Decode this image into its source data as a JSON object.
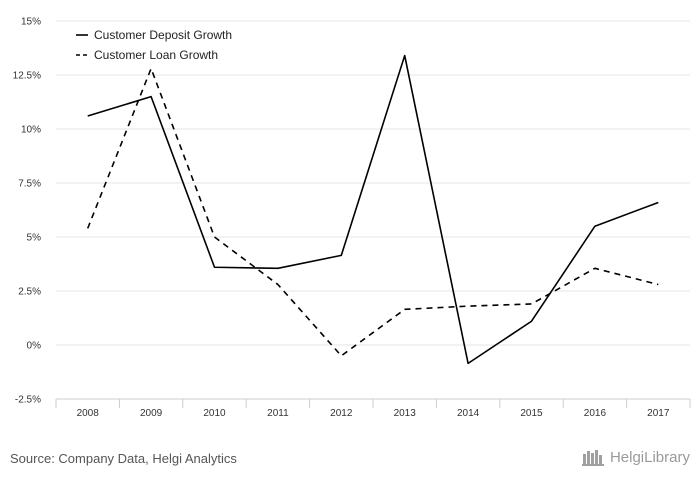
{
  "chart_data": {
    "type": "line",
    "title": "",
    "xlabel": "",
    "ylabel": "",
    "categories": [
      "2008",
      "2009",
      "2010",
      "2011",
      "2012",
      "2013",
      "2014",
      "2015",
      "2016",
      "2017"
    ],
    "ylim": [
      -2.5,
      15
    ],
    "yticks": [
      -2.5,
      0,
      2.5,
      5,
      7.5,
      10,
      12.5,
      15
    ],
    "ytick_labels": [
      "-2.5%",
      "0%",
      "2.5%",
      "5%",
      "7.5%",
      "10%",
      "12.5%",
      "15%"
    ],
    "grid": true,
    "legend": "top-left",
    "series": [
      {
        "name": "Customer Deposit Growth",
        "style": "solid",
        "color": "#000000",
        "values": [
          10.6,
          11.5,
          3.6,
          3.55,
          4.15,
          13.4,
          -0.85,
          1.1,
          5.5,
          6.6
        ]
      },
      {
        "name": "Customer Loan Growth",
        "style": "dashed",
        "color": "#000000",
        "values": [
          5.4,
          12.8,
          5.0,
          2.8,
          -0.5,
          1.65,
          1.8,
          1.9,
          3.55,
          2.8
        ]
      }
    ]
  },
  "footer": {
    "source": "Source: Company Data, Helgi Analytics",
    "brand": "HelgiLibrary"
  },
  "icons": {
    "brand_logo": "library-books-icon"
  }
}
